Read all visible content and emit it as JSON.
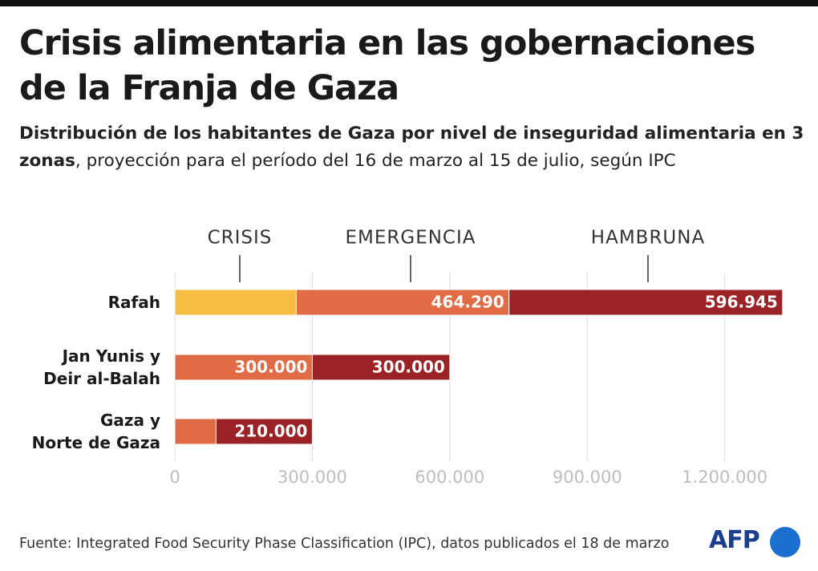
{
  "chart_data": {
    "type": "stacked-bar-horizontal",
    "title": "Crisis alimentaria en las gobernaciones de la Franja de Gaza",
    "subtitle_bold": "Distribución de los habitantes de Gaza por nivel de inseguridad alimentaria en 3 zonas",
    "subtitle": ", proyección para el período del 16 de marzo al 15 de julio, según IPC",
    "categories": [
      "Rafah",
      "Jan Yunis y\nDeir al-Balah",
      "Gaza y\nNorte de Gaza"
    ],
    "series": [
      {
        "name": "CRISIS",
        "color": "#f8bd45",
        "values": [
          265000,
          null,
          null
        ],
        "value_labels": [
          null,
          null,
          null
        ]
      },
      {
        "name": "EMERGENCIA",
        "color": "#e06b45",
        "values": [
          464290,
          300000,
          90000
        ],
        "value_labels": [
          "464.290",
          "300.000",
          null
        ]
      },
      {
        "name": "HAMBRUNA",
        "color": "#9b2226",
        "values": [
          596945,
          300000,
          210000
        ],
        "value_labels": [
          "596.945",
          "300.000",
          "210.000"
        ]
      }
    ],
    "xlim": [
      0,
      1330000
    ],
    "xticks": [
      0,
      {
        "value": 300000,
        "label": "300.000"
      },
      {
        "value": 600000,
        "label": "600.000"
      },
      {
        "value": 900000,
        "label": "900.000"
      },
      {
        "value": 1200000,
        "label": "1.200.000"
      }
    ],
    "grid": true,
    "source": "Fuente: Integrated Food Security Phase Classification (IPC), datos publicados el 18 de marzo",
    "logo": "AFP"
  }
}
